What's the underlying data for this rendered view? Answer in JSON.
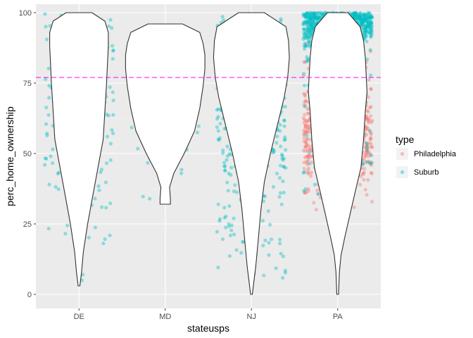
{
  "chart_data": {
    "type": "violin",
    "xlabel": "stateusps",
    "ylabel": "perc_home_ownership",
    "ylim": [
      -5,
      103
    ],
    "y_ticks": [
      0,
      25,
      50,
      75,
      100
    ],
    "categories": [
      "DE",
      "MD",
      "NJ",
      "PA"
    ],
    "reference_line": {
      "y": 77,
      "color": "#ff00ff",
      "style": "dashed"
    },
    "legend": {
      "title": "type",
      "position": "right",
      "items": [
        {
          "label": "Philadelphia",
          "color": "#f8766d"
        },
        {
          "label": "Suburb",
          "color": "#00bfc4"
        }
      ]
    },
    "panel_background": "#ebebeb",
    "grid": true,
    "violins": [
      {
        "category": "DE",
        "y_min": 3,
        "y_max": 100,
        "profile": [
          [
            3,
            0.01
          ],
          [
            8,
            0.03
          ],
          [
            15,
            0.05
          ],
          [
            25,
            0.1
          ],
          [
            35,
            0.16
          ],
          [
            45,
            0.22
          ],
          [
            55,
            0.28
          ],
          [
            65,
            0.3
          ],
          [
            75,
            0.32
          ],
          [
            82,
            0.33
          ],
          [
            88,
            0.34
          ],
          [
            93,
            0.34
          ],
          [
            97,
            0.3
          ],
          [
            100,
            0.15
          ]
        ]
      },
      {
        "category": "MD",
        "y_min": 32,
        "y_max": 96,
        "profile": [
          [
            32,
            0.06
          ],
          [
            34,
            0.06
          ],
          [
            38,
            0.05
          ],
          [
            43,
            0.1
          ],
          [
            50,
            0.22
          ],
          [
            58,
            0.34
          ],
          [
            66,
            0.4
          ],
          [
            74,
            0.44
          ],
          [
            80,
            0.46
          ],
          [
            85,
            0.46
          ],
          [
            89,
            0.44
          ],
          [
            93,
            0.4
          ],
          [
            96,
            0.2
          ]
        ]
      },
      {
        "category": "NJ",
        "y_min": 0,
        "y_max": 100,
        "profile": [
          [
            0,
            0.01
          ],
          [
            5,
            0.03
          ],
          [
            10,
            0.05
          ],
          [
            20,
            0.08
          ],
          [
            30,
            0.11
          ],
          [
            40,
            0.15
          ],
          [
            50,
            0.22
          ],
          [
            60,
            0.3
          ],
          [
            70,
            0.38
          ],
          [
            77,
            0.42
          ],
          [
            84,
            0.44
          ],
          [
            90,
            0.43
          ],
          [
            95,
            0.4
          ],
          [
            100,
            0.15
          ]
        ]
      },
      {
        "category": "PA",
        "y_min": 0,
        "y_max": 100,
        "profile": [
          [
            0,
            0.01
          ],
          [
            8,
            0.02
          ],
          [
            14,
            0.04
          ],
          [
            20,
            0.08
          ],
          [
            28,
            0.14
          ],
          [
            36,
            0.2
          ],
          [
            45,
            0.27
          ],
          [
            55,
            0.3
          ],
          [
            65,
            0.32
          ],
          [
            72,
            0.34
          ],
          [
            78,
            0.33
          ],
          [
            84,
            0.32
          ],
          [
            90,
            0.3
          ],
          [
            95,
            0.26
          ],
          [
            100,
            0.12
          ]
        ]
      }
    ],
    "points": {
      "DE": {
        "Suburb_n": 230
      },
      "MD": {
        "Suburb_n": 40
      },
      "NJ": {
        "Suburb_n": 600
      },
      "PA": {
        "Suburb_n": 900,
        "Philadelphia_n": 700
      }
    }
  }
}
